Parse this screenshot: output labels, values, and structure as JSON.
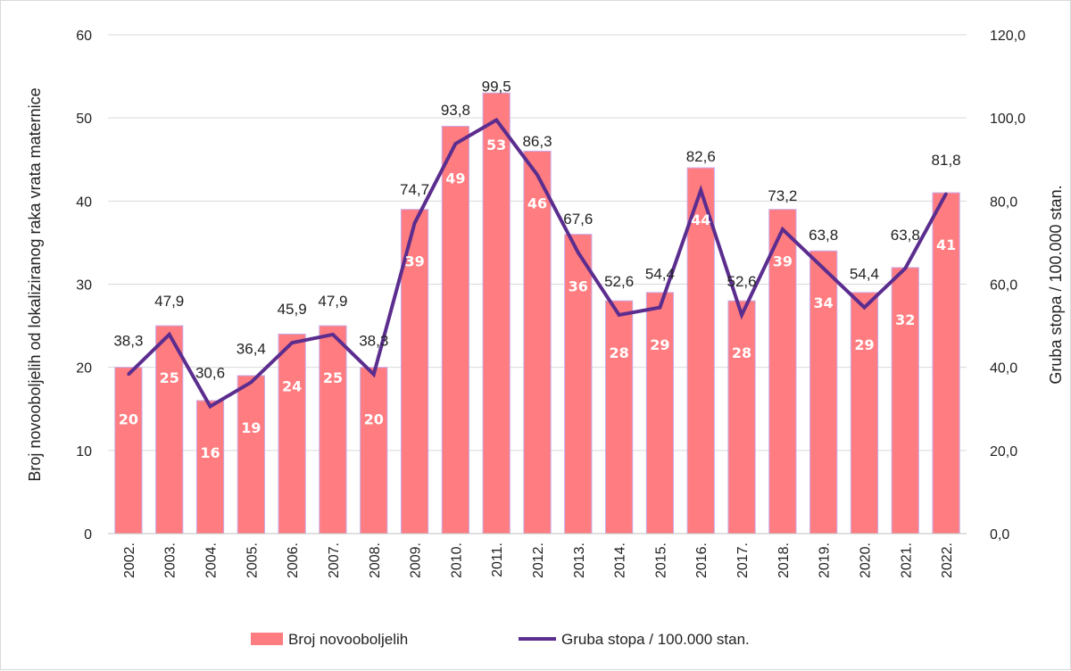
{
  "chart_data": {
    "type": "bar",
    "categories": [
      "2002.",
      "2003.",
      "2004.",
      "2005.",
      "2006.",
      "2007.",
      "2008.",
      "2009.",
      "2010.",
      "2011.",
      "2012.",
      "2013.",
      "2014.",
      "2015.",
      "2016.",
      "2017.",
      "2018.",
      "2019.",
      "2020.",
      "2021.",
      "2022."
    ],
    "series": [
      {
        "name": "Broj novooboljelih",
        "type": "bar",
        "axis": "left",
        "color": "#ff7c80",
        "values": [
          20,
          25,
          16,
          19,
          24,
          25,
          20,
          39,
          49,
          53,
          46,
          36,
          28,
          29,
          44,
          28,
          39,
          34,
          29,
          32,
          41
        ],
        "labels": [
          "20",
          "25",
          "16",
          "19",
          "24",
          "25",
          "20",
          "39",
          "49",
          "53",
          "46",
          "36",
          "28",
          "29",
          "44",
          "28",
          "39",
          "34",
          "29",
          "32",
          "41"
        ]
      },
      {
        "name": "Gruba stopa / 100.000 stan.",
        "type": "line",
        "axis": "right",
        "color": "#5b2d8e",
        "values": [
          38.3,
          47.9,
          30.6,
          36.4,
          45.9,
          47.9,
          38.3,
          74.7,
          93.8,
          99.5,
          86.3,
          67.6,
          52.6,
          54.4,
          82.6,
          52.6,
          73.2,
          63.8,
          54.4,
          63.8,
          81.8
        ],
        "labels": [
          "38,3",
          "47,9",
          "30,6",
          "36,4",
          "45,9",
          "47,9",
          "38,3",
          "74,7",
          "93,8",
          "99,5",
          "86,3",
          "67,6",
          "52,6",
          "54,4",
          "82,6",
          "52,6",
          "73,2",
          "63,8",
          "54,4",
          "63,8",
          "81,8"
        ]
      }
    ],
    "ylabel": "Broj novooboljelih od lokaliziranog raka vrata maternice",
    "y2label": "Gruba stopa / 100.000 stan.",
    "ylim": [
      0,
      60
    ],
    "y2lim": [
      0,
      120
    ],
    "yticks": [
      "0",
      "10",
      "20",
      "30",
      "40",
      "50",
      "60"
    ],
    "y2ticks": [
      "0,0",
      "20,0",
      "40,0",
      "60,0",
      "80,0",
      "100,0",
      "120,0"
    ],
    "grid": true,
    "legend_position": "bottom"
  }
}
